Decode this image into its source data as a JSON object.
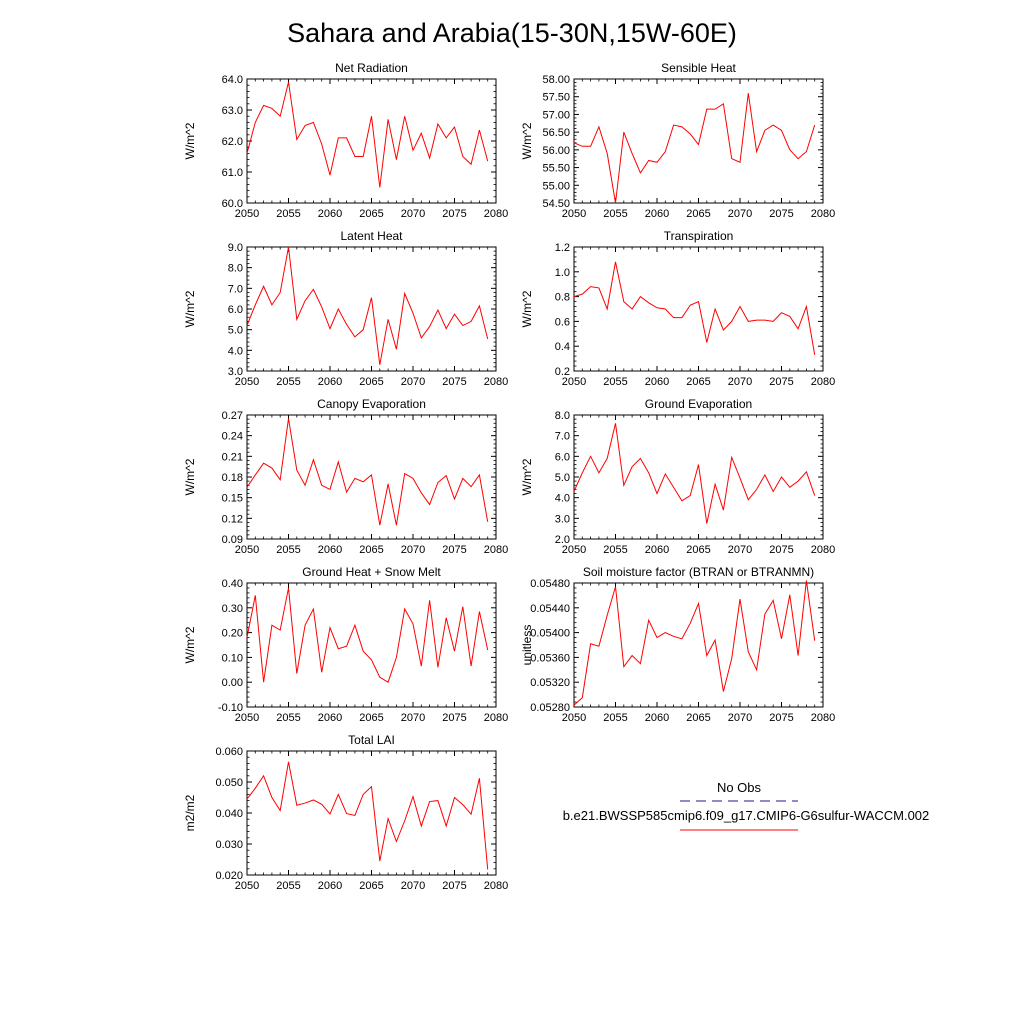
{
  "title": "Sahara and Arabia(15-30N,15W-60E)",
  "legend": {
    "obs_label": "No Obs",
    "case_label": "b.e21.BWSSP585cmip6.f09_g17.CMIP6-G6sulfur-WACCM.002",
    "obs_color": "#1a1a8c",
    "case_color": "#ff0000"
  },
  "series_color": "#ff0000",
  "chart_data": [
    {
      "type": "line",
      "title": "Net Radiation",
      "ylabel": "W/m^2",
      "xlabel": "",
      "xlim": [
        2050,
        2080
      ],
      "ylim": [
        60.0,
        64.0
      ],
      "xticks": [
        "2050",
        "2055",
        "2060",
        "2065",
        "2070",
        "2075",
        "2080"
      ],
      "yticks": [
        "60.0",
        "61.0",
        "62.0",
        "63.0",
        "64.0"
      ],
      "x": [
        2050,
        2051,
        2052,
        2053,
        2054,
        2055,
        2056,
        2057,
        2058,
        2059,
        2060,
        2061,
        2062,
        2063,
        2064,
        2065,
        2066,
        2067,
        2068,
        2069,
        2070,
        2071,
        2072,
        2073,
        2074,
        2075,
        2076,
        2077,
        2078,
        2079
      ],
      "values": [
        61.6,
        62.6,
        63.15,
        63.05,
        62.8,
        63.9,
        62.05,
        62.5,
        62.6,
        61.9,
        60.9,
        62.1,
        62.1,
        61.5,
        61.5,
        62.8,
        60.5,
        62.7,
        61.4,
        62.8,
        61.7,
        62.25,
        61.45,
        62.55,
        62.1,
        62.45,
        61.5,
        61.25,
        62.35,
        61.35
      ]
    },
    {
      "type": "line",
      "title": "Sensible Heat",
      "ylabel": "W/m^2",
      "xlabel": "",
      "xlim": [
        2050,
        2080
      ],
      "ylim": [
        54.5,
        58.0
      ],
      "xticks": [
        "2050",
        "2055",
        "2060",
        "2065",
        "2070",
        "2075",
        "2080"
      ],
      "yticks": [
        "54.50",
        "55.00",
        "55.50",
        "56.00",
        "56.50",
        "57.00",
        "57.50",
        "58.00"
      ],
      "x": [
        2050,
        2051,
        2052,
        2053,
        2054,
        2055,
        2056,
        2057,
        2058,
        2059,
        2060,
        2061,
        2062,
        2063,
        2064,
        2065,
        2066,
        2067,
        2068,
        2069,
        2070,
        2071,
        2072,
        2073,
        2074,
        2075,
        2076,
        2077,
        2078,
        2079
      ],
      "values": [
        56.2,
        56.1,
        56.1,
        56.65,
        55.9,
        54.5,
        56.5,
        55.9,
        55.35,
        55.7,
        55.65,
        55.95,
        56.7,
        56.65,
        56.45,
        56.15,
        57.15,
        57.15,
        57.3,
        55.75,
        55.65,
        57.6,
        55.95,
        56.55,
        56.7,
        56.55,
        56.0,
        55.75,
        55.95,
        56.7
      ]
    },
    {
      "type": "line",
      "title": "Latent Heat",
      "ylabel": "W/m^2",
      "xlabel": "",
      "xlim": [
        2050,
        2080
      ],
      "ylim": [
        3.0,
        9.0
      ],
      "xticks": [
        "2050",
        "2055",
        "2060",
        "2065",
        "2070",
        "2075",
        "2080"
      ],
      "yticks": [
        "3.0",
        "4.0",
        "5.0",
        "6.0",
        "7.0",
        "8.0",
        "9.0"
      ],
      "x": [
        2050,
        2051,
        2052,
        2053,
        2054,
        2055,
        2056,
        2057,
        2058,
        2059,
        2060,
        2061,
        2062,
        2063,
        2064,
        2065,
        2066,
        2067,
        2068,
        2069,
        2070,
        2071,
        2072,
        2073,
        2074,
        2075,
        2076,
        2077,
        2078,
        2079
      ],
      "values": [
        5.2,
        6.2,
        7.1,
        6.2,
        6.8,
        9.0,
        5.5,
        6.4,
        6.95,
        6.1,
        5.05,
        6.0,
        5.25,
        4.65,
        5.0,
        6.55,
        3.3,
        5.5,
        4.05,
        6.75,
        5.8,
        4.6,
        5.15,
        5.95,
        5.05,
        5.75,
        5.2,
        5.4,
        6.15,
        4.55
      ]
    },
    {
      "type": "line",
      "title": "Transpiration",
      "ylabel": "W/m^2",
      "xlabel": "",
      "xlim": [
        2050,
        2080
      ],
      "ylim": [
        0.2,
        1.2
      ],
      "xticks": [
        "2050",
        "2055",
        "2060",
        "2065",
        "2070",
        "2075",
        "2080"
      ],
      "yticks": [
        "0.2",
        "0.4",
        "0.6",
        "0.8",
        "1.0",
        "1.2"
      ],
      "x": [
        2050,
        2051,
        2052,
        2053,
        2054,
        2055,
        2056,
        2057,
        2058,
        2059,
        2060,
        2061,
        2062,
        2063,
        2064,
        2065,
        2066,
        2067,
        2068,
        2069,
        2070,
        2071,
        2072,
        2073,
        2074,
        2075,
        2076,
        2077,
        2078,
        2079
      ],
      "values": [
        0.8,
        0.82,
        0.88,
        0.87,
        0.7,
        1.08,
        0.76,
        0.7,
        0.8,
        0.75,
        0.71,
        0.7,
        0.63,
        0.63,
        0.73,
        0.76,
        0.43,
        0.7,
        0.53,
        0.6,
        0.72,
        0.6,
        0.61,
        0.61,
        0.6,
        0.67,
        0.64,
        0.54,
        0.72,
        0.33
      ]
    },
    {
      "type": "line",
      "title": "Canopy Evaporation",
      "ylabel": "W/m^2",
      "xlabel": "",
      "xlim": [
        2050,
        2080
      ],
      "ylim": [
        0.09,
        0.27
      ],
      "xticks": [
        "2050",
        "2055",
        "2060",
        "2065",
        "2070",
        "2075",
        "2080"
      ],
      "yticks": [
        "0.09",
        "0.12",
        "0.15",
        "0.18",
        "0.21",
        "0.24",
        "0.27"
      ],
      "x": [
        2050,
        2051,
        2052,
        2053,
        2054,
        2055,
        2056,
        2057,
        2058,
        2059,
        2060,
        2061,
        2062,
        2063,
        2064,
        2065,
        2066,
        2067,
        2068,
        2069,
        2070,
        2071,
        2072,
        2073,
        2074,
        2075,
        2076,
        2077,
        2078,
        2079
      ],
      "values": [
        0.165,
        0.183,
        0.2,
        0.193,
        0.176,
        0.265,
        0.19,
        0.168,
        0.205,
        0.168,
        0.162,
        0.202,
        0.158,
        0.178,
        0.173,
        0.183,
        0.11,
        0.17,
        0.11,
        0.185,
        0.178,
        0.157,
        0.14,
        0.172,
        0.182,
        0.148,
        0.178,
        0.166,
        0.183,
        0.115
      ]
    },
    {
      "type": "line",
      "title": "Ground Evaporation",
      "ylabel": "W/m^2",
      "xlabel": "",
      "xlim": [
        2050,
        2080
      ],
      "ylim": [
        2.0,
        8.0
      ],
      "xticks": [
        "2050",
        "2055",
        "2060",
        "2065",
        "2070",
        "2075",
        "2080"
      ],
      "yticks": [
        "2.0",
        "3.0",
        "4.0",
        "5.0",
        "6.0",
        "7.0",
        "8.0"
      ],
      "x": [
        2050,
        2051,
        2052,
        2053,
        2054,
        2055,
        2056,
        2057,
        2058,
        2059,
        2060,
        2061,
        2062,
        2063,
        2064,
        2065,
        2066,
        2067,
        2068,
        2069,
        2070,
        2071,
        2072,
        2073,
        2074,
        2075,
        2076,
        2077,
        2078,
        2079
      ],
      "values": [
        4.3,
        5.2,
        6.0,
        5.2,
        5.9,
        7.6,
        4.6,
        5.5,
        5.9,
        5.2,
        4.2,
        5.15,
        4.5,
        3.85,
        4.1,
        5.6,
        2.75,
        4.65,
        3.4,
        5.95,
        4.95,
        3.9,
        4.4,
        5.1,
        4.3,
        5.0,
        4.5,
        4.8,
        5.25,
        4.1
      ]
    },
    {
      "type": "line",
      "title": "Ground Heat + Snow Melt",
      "ylabel": "W/m^2",
      "xlabel": "",
      "xlim": [
        2050,
        2080
      ],
      "ylim": [
        -0.1,
        0.4
      ],
      "xticks": [
        "2050",
        "2055",
        "2060",
        "2065",
        "2070",
        "2075",
        "2080"
      ],
      "yticks": [
        "-0.10",
        "0.00",
        "0.10",
        "0.20",
        "0.30",
        "0.40"
      ],
      "x": [
        2050,
        2051,
        2052,
        2053,
        2054,
        2055,
        2056,
        2057,
        2058,
        2059,
        2060,
        2061,
        2062,
        2063,
        2064,
        2065,
        2066,
        2067,
        2068,
        2069,
        2070,
        2071,
        2072,
        2073,
        2074,
        2075,
        2076,
        2077,
        2078,
        2079
      ],
      "values": [
        0.18,
        0.35,
        0.0,
        0.23,
        0.21,
        0.38,
        0.035,
        0.23,
        0.295,
        0.04,
        0.22,
        0.135,
        0.145,
        0.23,
        0.125,
        0.09,
        0.02,
        0.0,
        0.1,
        0.295,
        0.235,
        0.065,
        0.33,
        0.06,
        0.26,
        0.125,
        0.305,
        0.065,
        0.285,
        0.13
      ]
    },
    {
      "type": "line",
      "title": "Soil moisture factor (BTRAN or BTRANMN)",
      "ylabel": "unitless",
      "xlabel": "",
      "xlim": [
        2050,
        2080
      ],
      "ylim": [
        0.0528,
        0.0548
      ],
      "xticks": [
        "2050",
        "2055",
        "2060",
        "2065",
        "2070",
        "2075",
        "2080"
      ],
      "yticks": [
        "0.05280",
        "0.05320",
        "0.05360",
        "0.05400",
        "0.05440",
        "0.05480"
      ],
      "x": [
        2050,
        2051,
        2052,
        2053,
        2054,
        2055,
        2056,
        2057,
        2058,
        2059,
        2060,
        2061,
        2062,
        2063,
        2064,
        2065,
        2066,
        2067,
        2068,
        2069,
        2070,
        2071,
        2072,
        2073,
        2074,
        2075,
        2076,
        2077,
        2078,
        2079
      ],
      "values": [
        0.05283,
        0.05295,
        0.05382,
        0.05378,
        0.05428,
        0.05474,
        0.05345,
        0.05363,
        0.0535,
        0.0542,
        0.05392,
        0.054,
        0.05394,
        0.0539,
        0.05415,
        0.05447,
        0.05363,
        0.05388,
        0.05305,
        0.05358,
        0.05454,
        0.05369,
        0.0534,
        0.0543,
        0.05452,
        0.0539,
        0.05461,
        0.05363,
        0.05484,
        0.05387
      ]
    },
    {
      "type": "line",
      "title": "Total LAI",
      "ylabel": "m2/m2",
      "xlabel": "",
      "xlim": [
        2050,
        2080
      ],
      "ylim": [
        0.02,
        0.06
      ],
      "xticks": [
        "2050",
        "2055",
        "2060",
        "2065",
        "2070",
        "2075",
        "2080"
      ],
      "yticks": [
        "0.020",
        "0.030",
        "0.040",
        "0.050",
        "0.060"
      ],
      "x": [
        2050,
        2051,
        2052,
        2053,
        2054,
        2055,
        2056,
        2057,
        2058,
        2059,
        2060,
        2061,
        2062,
        2063,
        2064,
        2065,
        2066,
        2067,
        2068,
        2069,
        2070,
        2071,
        2072,
        2073,
        2074,
        2075,
        2076,
        2077,
        2078,
        2079
      ],
      "values": [
        0.0445,
        0.048,
        0.052,
        0.045,
        0.0408,
        0.0565,
        0.0425,
        0.0432,
        0.0442,
        0.0428,
        0.0397,
        0.046,
        0.0398,
        0.0392,
        0.046,
        0.0485,
        0.0245,
        0.0382,
        0.0308,
        0.0375,
        0.0453,
        0.0358,
        0.0437,
        0.044,
        0.0358,
        0.045,
        0.0427,
        0.0396,
        0.0512,
        0.0218
      ]
    }
  ]
}
